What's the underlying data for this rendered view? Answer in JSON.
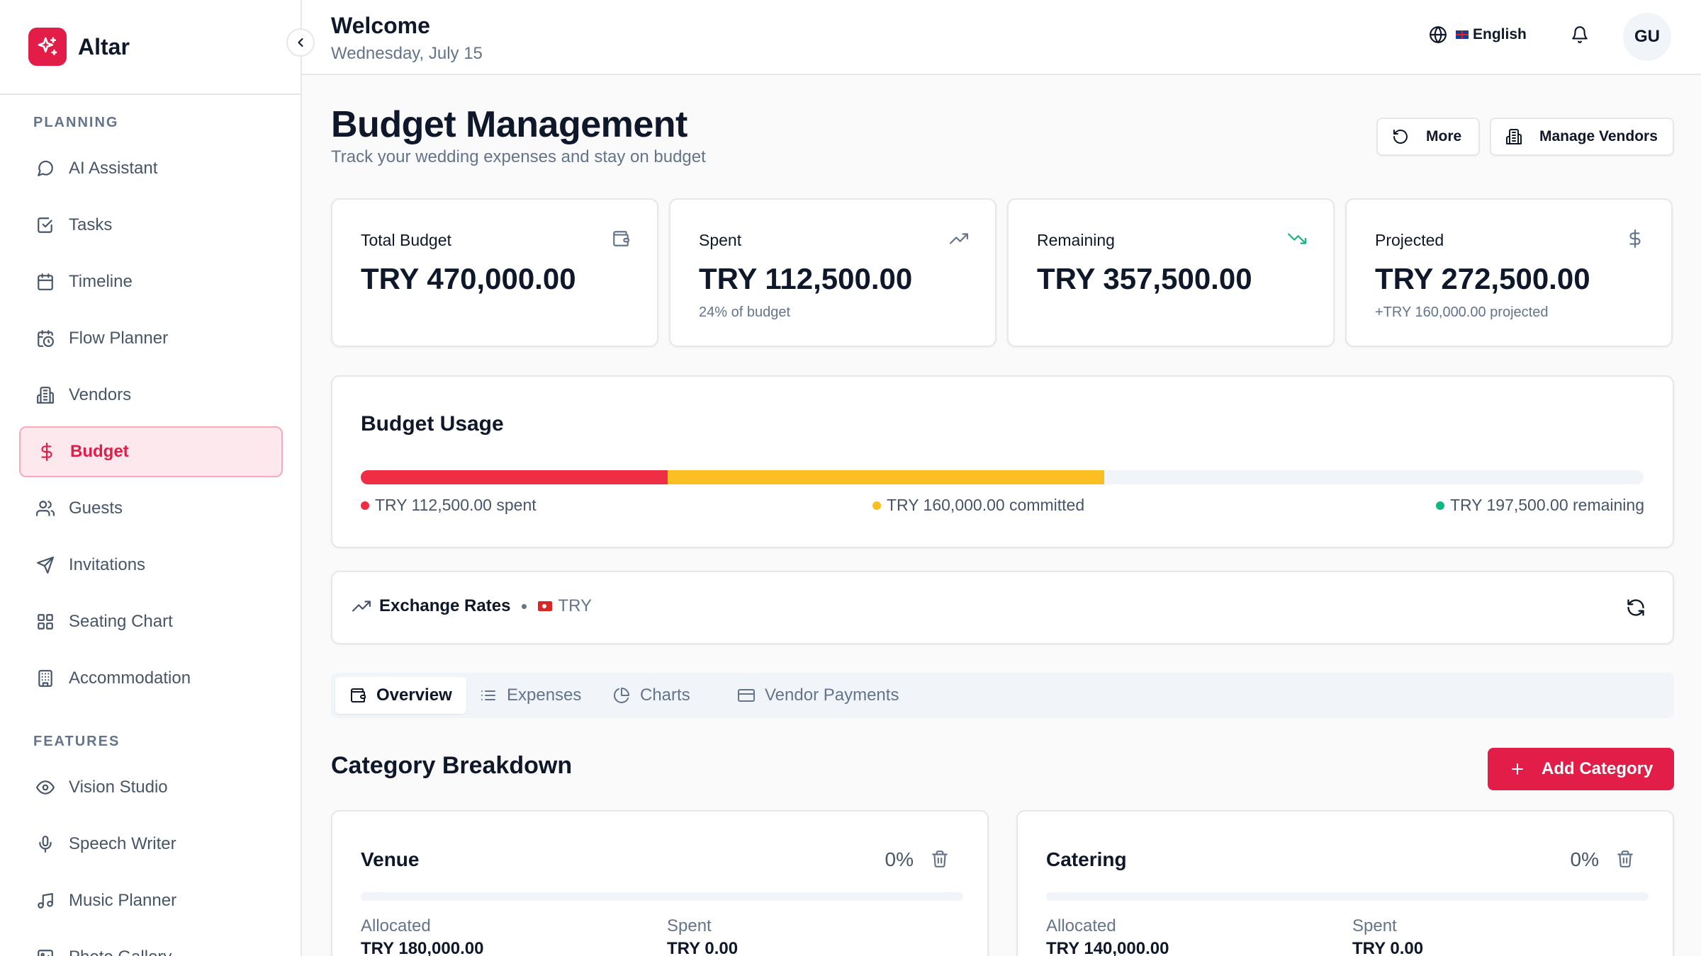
{
  "app": {
    "name": "Altar"
  },
  "sidebar": {
    "sections": [
      {
        "label": "PLANNING"
      },
      {
        "label": "FEATURES"
      }
    ],
    "planning_items": [
      {
        "label": "AI Assistant",
        "icon": "chat-bubble-icon"
      },
      {
        "label": "Tasks",
        "icon": "checkbox-icon"
      },
      {
        "label": "Timeline",
        "icon": "calendar-icon"
      },
      {
        "label": "Flow Planner",
        "icon": "calendar-clock-icon"
      },
      {
        "label": "Vendors",
        "icon": "building-icon"
      },
      {
        "label": "Budget",
        "icon": "dollar-icon",
        "active": true
      },
      {
        "label": "Guests",
        "icon": "users-icon"
      },
      {
        "label": "Invitations",
        "icon": "send-icon"
      },
      {
        "label": "Seating Chart",
        "icon": "grid-icon"
      },
      {
        "label": "Accommodation",
        "icon": "hotel-icon"
      }
    ],
    "feature_items": [
      {
        "label": "Vision Studio",
        "icon": "eye-icon"
      },
      {
        "label": "Speech Writer",
        "icon": "mic-icon"
      },
      {
        "label": "Music Planner",
        "icon": "music-icon"
      },
      {
        "label": "Photo Gallery",
        "icon": "image-icon"
      }
    ]
  },
  "header": {
    "welcome": "Welcome",
    "date": "Wednesday, July 15",
    "language": "English",
    "avatar_initials": "GU"
  },
  "page": {
    "title": "Budget Management",
    "subtitle": "Track your wedding expenses and stay on budget",
    "more_label": "More",
    "manage_vendors_label": "Manage Vendors"
  },
  "stats": [
    {
      "label": "Total Budget",
      "value": "TRY 470,000.00",
      "sub": "",
      "icon": "wallet-icon"
    },
    {
      "label": "Spent",
      "value": "TRY 112,500.00",
      "sub": "24% of budget",
      "icon": "trending-up-icon"
    },
    {
      "label": "Remaining",
      "value": "TRY 357,500.00",
      "sub": "",
      "icon": "trending-down-icon"
    },
    {
      "label": "Projected",
      "value": "TRY 272,500.00",
      "sub": "+TRY 160,000.00 projected",
      "icon": "dollar-icon"
    }
  ],
  "usage": {
    "title": "Budget Usage",
    "spent_fraction": 0.2394,
    "committed_fraction": 0.3404,
    "spent_label": "TRY 112,500.00 spent",
    "committed_label": "TRY 160,000.00 committed",
    "remaining_label": "TRY 197,500.00 remaining",
    "colors": {
      "spent": "#ef2d45",
      "committed": "#fbbf24",
      "remaining": "#10b981"
    }
  },
  "exchange": {
    "title": "Exchange Rates",
    "currency": "TRY"
  },
  "tabs": [
    {
      "label": "Overview",
      "icon": "wallet-icon",
      "active": true
    },
    {
      "label": "Expenses",
      "icon": "list-icon"
    },
    {
      "label": "Charts",
      "icon": "pie-chart-icon"
    },
    {
      "label": "Vendor Payments",
      "icon": "credit-card-icon"
    }
  ],
  "categories": {
    "title": "Category Breakdown",
    "add_label": "Add Category",
    "allocated_label": "Allocated",
    "spent_label": "Spent",
    "items": [
      {
        "name": "Venue",
        "percent": "0%",
        "allocated": "TRY 180,000.00",
        "spent": "TRY 0.00"
      },
      {
        "name": "Catering",
        "percent": "0%",
        "allocated": "TRY 140,000.00",
        "spent": "TRY 0.00"
      }
    ]
  },
  "colors": {
    "accent": "#e11d48",
    "accent_bg": "#fde8ee"
  }
}
